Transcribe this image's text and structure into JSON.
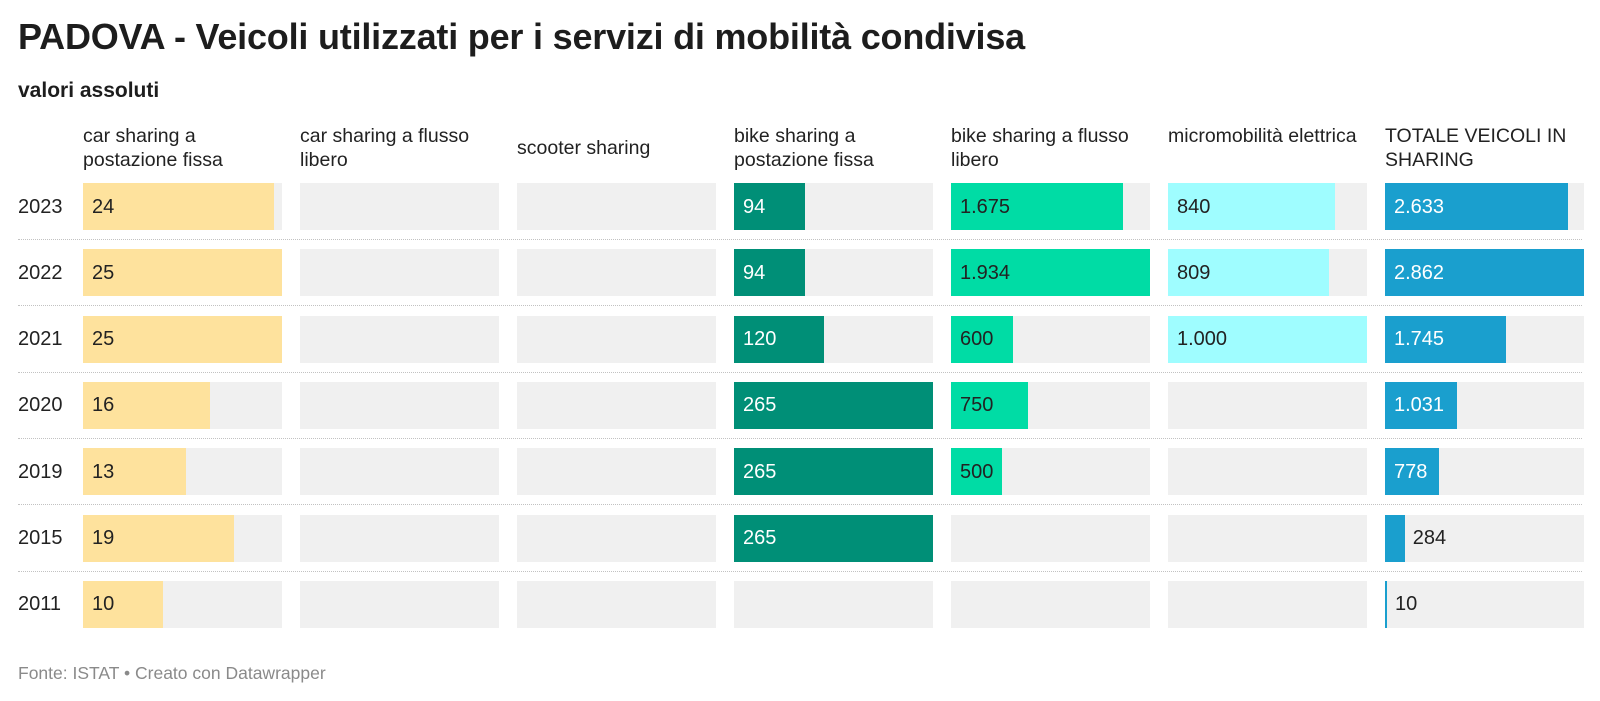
{
  "title": "PADOVA - Veicoli utilizzati per i servizi di mobilità condivisa",
  "subtitle": "valori assoluti",
  "footer": "Fonte: ISTAT • Creato con Datawrapper",
  "chart_data": {
    "type": "bar",
    "title": "PADOVA - Veicoli utilizzati per i servizi di mobilità condivisa",
    "subtitle": "valori assoluti",
    "categories": [
      "2023",
      "2022",
      "2021",
      "2020",
      "2019",
      "2015",
      "2011"
    ],
    "series": [
      {
        "name": "car sharing a postazione fissa",
        "color": "#fee29d",
        "values": [
          24,
          25,
          25,
          16,
          13,
          19,
          10
        ],
        "labels": [
          "24",
          "25",
          "25",
          "16",
          "13",
          "19",
          "10"
        ]
      },
      {
        "name": "car sharing a flusso libero",
        "color": "#fee29d",
        "values": [
          null,
          null,
          null,
          null,
          null,
          null,
          null
        ],
        "labels": [
          "",
          "",
          "",
          "",
          "",
          "",
          ""
        ]
      },
      {
        "name": "scooter sharing",
        "color": "#fee29d",
        "values": [
          null,
          null,
          null,
          null,
          null,
          null,
          null
        ],
        "labels": [
          "",
          "",
          "",
          "",
          "",
          "",
          ""
        ]
      },
      {
        "name": "bike sharing a postazione fissa",
        "color": "#008f77",
        "values": [
          94,
          94,
          120,
          265,
          265,
          265,
          null
        ],
        "labels": [
          "94",
          "94",
          "120",
          "265",
          "265",
          "265",
          ""
        ]
      },
      {
        "name": "bike sharing a flusso libero",
        "color": "#00dca5",
        "values": [
          1675,
          1934,
          600,
          750,
          500,
          null,
          null
        ],
        "labels": [
          "1.675",
          "1.934",
          "600",
          "750",
          "500",
          "",
          ""
        ]
      },
      {
        "name": "micromobilità elettrica",
        "color": "#9ffdff",
        "values": [
          840,
          809,
          1000,
          null,
          null,
          null,
          null
        ],
        "labels": [
          "840",
          "809",
          "1.000",
          "",
          "",
          "",
          ""
        ]
      },
      {
        "name": "TOTALE VEICOLI IN SHARING",
        "color": "#1a9fce",
        "values": [
          2633,
          2862,
          1745,
          1031,
          778,
          284,
          10
        ],
        "labels": [
          "2.633",
          "2.862",
          "1.745",
          "1.031",
          "778",
          "284",
          "10"
        ]
      }
    ],
    "text_colors": {
      "dark_bar": "#ffffff",
      "light_bar": "#222222",
      "outside": "#222222"
    },
    "grid": false,
    "legend": "none"
  }
}
